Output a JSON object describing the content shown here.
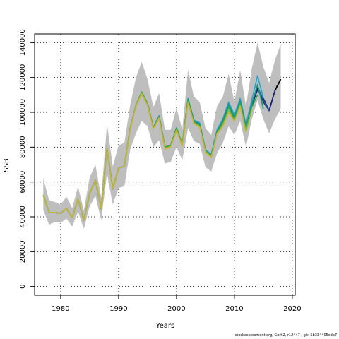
{
  "footer": "stockassessment.org, Gorh2, r12447 , git: 5b334405cda7",
  "chart_data": {
    "type": "line",
    "xlabel": "Years",
    "ylabel": "SSB",
    "xlim": [
      1975.5,
      2020.5
    ],
    "ylim": [
      -5000,
      145000
    ],
    "xticks": [
      1980,
      1990,
      2000,
      2010,
      2020
    ],
    "yticks": [
      0,
      20000,
      40000,
      60000,
      80000,
      100000,
      120000,
      140000
    ],
    "grid": true,
    "band": {
      "x": [
        1977,
        1978,
        1979,
        1980,
        1981,
        1982,
        1983,
        1984,
        1985,
        1986,
        1987,
        1988,
        1989,
        1990,
        1991,
        1992,
        1993,
        1994,
        1995,
        1996,
        1997,
        1998,
        1999,
        2000,
        2001,
        2002,
        2003,
        2004,
        2005,
        2006,
        2007,
        2008,
        2009,
        2010,
        2011,
        2012,
        2013,
        2014,
        2015,
        2016,
        2017,
        2018
      ],
      "upper": [
        62000,
        49500,
        48500,
        47000,
        51500,
        45000,
        57500,
        43500,
        62500,
        70000,
        51000,
        93500,
        69000,
        81000,
        82500,
        104000,
        120000,
        129000,
        119000,
        103000,
        111000,
        90000,
        90000,
        102500,
        90000,
        124500,
        109000,
        106000,
        91000,
        87000,
        103500,
        109000,
        122000,
        106000,
        124000,
        103500,
        125000,
        140000,
        126000,
        117000,
        130000,
        139000
      ],
      "lower": [
        44000,
        35500,
        37000,
        36500,
        39000,
        34500,
        43000,
        33000,
        46000,
        52000,
        38000,
        65000,
        47000,
        56500,
        57500,
        78500,
        88000,
        95000,
        92000,
        80000,
        84000,
        70500,
        71500,
        80000,
        72500,
        91000,
        83500,
        82000,
        68500,
        66000,
        76500,
        82500,
        92000,
        87000,
        95000,
        80000,
        96000,
        107000,
        96000,
        88000,
        96000,
        102000
      ]
    },
    "series": [
      {
        "color": "#000000",
        "x": [
          1977,
          1978,
          1979,
          1980,
          1981,
          1982,
          1983,
          1984,
          1985,
          1986,
          1987,
          1988,
          1989,
          1990,
          1991,
          1992,
          1993,
          1994,
          1995,
          1996,
          1997,
          1998,
          1999,
          2000,
          2001,
          2002,
          2003,
          2004,
          2005,
          2006,
          2007,
          2008,
          2009,
          2010,
          2011,
          2012,
          2013,
          2014,
          2015,
          2016,
          2017,
          2018
        ],
        "values": [
          52500,
          42500,
          42500,
          42000,
          44800,
          39500,
          50000,
          38000,
          53500,
          61000,
          44500,
          79000,
          56000,
          68000,
          69000,
          90500,
          104000,
          111500,
          105000,
          91000,
          97500,
          80000,
          81000,
          91000,
          81500,
          107500,
          95000,
          93000,
          78000,
          75000,
          89000,
          95500,
          105000,
          97500,
          107000,
          91000,
          104000,
          114000,
          106000,
          101000,
          112500,
          119000
        ]
      },
      {
        "color": "#1c1c7c",
        "x": [
          2013,
          2014,
          2015,
          2016,
          2017
        ],
        "values": [
          104000,
          113000,
          108000,
          101000,
          112500
        ]
      },
      {
        "color": "#1e5aa0",
        "x": [
          1977,
          1978,
          1979,
          1980,
          1981,
          1982,
          1983,
          1984,
          1985,
          1986,
          1987,
          1988,
          1989,
          1990,
          1991,
          1992,
          1993,
          1994,
          1995,
          1996,
          1997,
          1998,
          1999,
          2000,
          2001,
          2002,
          2003,
          2004,
          2005,
          2006,
          2007,
          2008,
          2009,
          2010,
          2011,
          2012,
          2013,
          2014,
          2015,
          2016
        ],
        "values": [
          52500,
          42500,
          42500,
          42000,
          44800,
          39500,
          50000,
          38000,
          53500,
          61000,
          44500,
          79000,
          56000,
          68000,
          69000,
          90500,
          104000,
          111500,
          105000,
          91000,
          98000,
          80000,
          81000,
          91000,
          81500,
          107500,
          95500,
          93500,
          78000,
          75500,
          89500,
          96000,
          105500,
          98000,
          107500,
          92000,
          105000,
          115000,
          106500,
          101000
        ]
      },
      {
        "color": "#29a3cc",
        "x": [
          1977,
          1978,
          1979,
          1980,
          1981,
          1982,
          1983,
          1984,
          1985,
          1986,
          1987,
          1988,
          1989,
          1990,
          1991,
          1992,
          1993,
          1994,
          1995,
          1996,
          1997,
          1998,
          1999,
          2000,
          2001,
          2002,
          2003,
          2004,
          2005,
          2006,
          2007,
          2008,
          2009,
          2010,
          2011,
          2012,
          2013,
          2014,
          2015
        ],
        "values": [
          52500,
          42500,
          42500,
          42000,
          44800,
          39500,
          50000,
          38000,
          53500,
          61000,
          44500,
          79000,
          56000,
          68000,
          69000,
          90500,
          104000,
          111500,
          105000,
          91000,
          98000,
          80000,
          81000,
          91000,
          81500,
          108000,
          95500,
          94000,
          78500,
          76000,
          90000,
          96000,
          106000,
          98500,
          108000,
          93000,
          107000,
          121000,
          108000
        ]
      },
      {
        "color": "#17977b",
        "x": [
          1977,
          1978,
          1979,
          1980,
          1981,
          1982,
          1983,
          1984,
          1985,
          1986,
          1987,
          1988,
          1989,
          1990,
          1991,
          1992,
          1993,
          1994,
          1995,
          1996,
          1997,
          1998,
          1999,
          2000,
          2001,
          2002,
          2003,
          2004,
          2005,
          2006,
          2007,
          2008,
          2009,
          2010,
          2011,
          2012,
          2013,
          2014,
          2015
        ],
        "values": [
          52500,
          42500,
          42500,
          42000,
          44800,
          39500,
          50000,
          38000,
          53500,
          61000,
          44500,
          79000,
          56000,
          68000,
          69000,
          90500,
          104000,
          111500,
          105000,
          91000,
          97500,
          80000,
          81000,
          91000,
          81500,
          107500,
          95000,
          93000,
          78000,
          75000,
          89000,
          95000,
          104500,
          97000,
          106500,
          91000,
          104500,
          116000,
          102000
        ]
      },
      {
        "color": "#2fa14a",
        "x": [
          1977,
          1978,
          1979,
          1980,
          1981,
          1982,
          1983,
          1984,
          1985,
          1986,
          1987,
          1988,
          1989,
          1990,
          1991,
          1992,
          1993,
          1994,
          1995,
          1996,
          1997,
          1998,
          1999,
          2000,
          2001,
          2002,
          2003,
          2004,
          2005,
          2006,
          2007,
          2008,
          2009,
          2010,
          2011,
          2012,
          2013,
          2014
        ],
        "values": [
          52500,
          42500,
          42500,
          42000,
          44800,
          39500,
          50000,
          38000,
          53500,
          61000,
          44500,
          79000,
          56000,
          68000,
          69000,
          90500,
          104000,
          111500,
          105000,
          91000,
          97500,
          80000,
          81000,
          91000,
          81500,
          107000,
          94500,
          92500,
          78000,
          75000,
          88500,
          94000,
          103000,
          96000,
          105500,
          90500,
          103000,
          110000
        ]
      },
      {
        "color": "#8ab82a",
        "x": [
          1977,
          1978,
          1979,
          1980,
          1981,
          1982,
          1983,
          1984,
          1985,
          1986,
          1987,
          1988,
          1989,
          1990,
          1991,
          1992,
          1993,
          1994,
          1995,
          1996,
          1997,
          1998,
          1999,
          2000,
          2001,
          2002,
          2003,
          2004,
          2005,
          2006,
          2007,
          2008,
          2009,
          2010,
          2011,
          2012,
          2013
        ],
        "values": [
          52500,
          42500,
          42500,
          42000,
          44800,
          39500,
          50000,
          38000,
          53500,
          61000,
          44500,
          79000,
          56000,
          68000,
          69000,
          90500,
          104000,
          111000,
          104500,
          90500,
          97000,
          79500,
          80500,
          90000,
          81000,
          106000,
          94000,
          92000,
          77500,
          74500,
          88000,
          92500,
          101000,
          95000,
          104000,
          89000,
          102000
        ]
      },
      {
        "color": "#c6b43a",
        "x": [
          1977,
          1978,
          1979,
          1980,
          1981,
          1982,
          1983,
          1984,
          1985,
          1986,
          1987,
          1988,
          1989,
          1990,
          1991,
          1992,
          1993,
          1994,
          1995,
          1996,
          1997,
          1998,
          1999,
          2000,
          2001,
          2002,
          2003,
          2004,
          2005,
          2006,
          2007,
          2008,
          2009,
          2010,
          2011,
          2012
        ],
        "values": [
          52500,
          42500,
          42500,
          42000,
          44800,
          39500,
          50000,
          38000,
          53500,
          61000,
          44500,
          79000,
          56000,
          68000,
          69000,
          90000,
          103500,
          110500,
          104000,
          90500,
          96500,
          79000,
          80000,
          89500,
          80500,
          105500,
          93500,
          91500,
          77000,
          74000,
          87500,
          92000,
          100000,
          95000,
          103500,
          88500
        ]
      },
      {
        "color": "#000000",
        "dashed": true,
        "x": [
          2017,
          2018
        ],
        "values": [
          112500,
          119000
        ]
      }
    ]
  }
}
